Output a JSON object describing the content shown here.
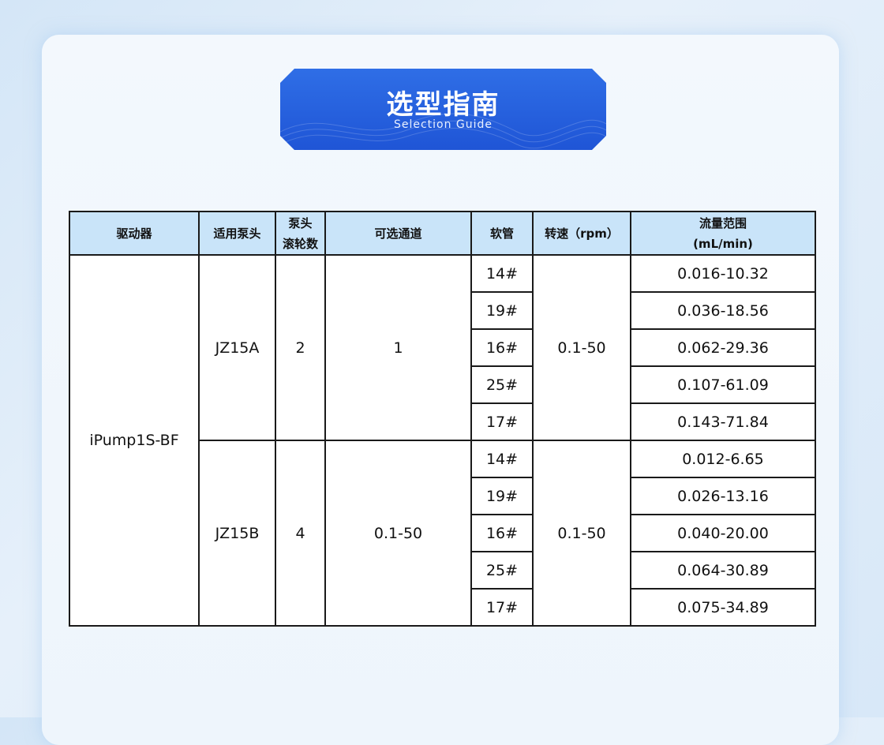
{
  "banner": {
    "title": "选型指南",
    "subtitle": "Selection Guide"
  },
  "table": {
    "headers": [
      "驱动器",
      "适用泵头",
      "泵头\n滚轮数",
      "可选通道",
      "软管",
      "转速（rpm）",
      "流量范围\n(mL/min)"
    ],
    "driver": "iPump1S-BF",
    "groups": [
      {
        "pump_head": "JZ15A",
        "rollers": "2",
        "channels": "1",
        "speed": "0.1-50",
        "rows": [
          {
            "tube": "14#",
            "flow": "0.016-10.32"
          },
          {
            "tube": "19#",
            "flow": "0.036-18.56"
          },
          {
            "tube": "16#",
            "flow": "0.062-29.36"
          },
          {
            "tube": "25#",
            "flow": "0.107-61.09"
          },
          {
            "tube": "17#",
            "flow": "0.143-71.84"
          }
        ]
      },
      {
        "pump_head": "JZ15B",
        "rollers": "4",
        "channels": "0.1-50",
        "speed": "0.1-50",
        "rows": [
          {
            "tube": "14#",
            "flow": "0.012-6.65"
          },
          {
            "tube": "19#",
            "flow": "0.026-13.16"
          },
          {
            "tube": "16#",
            "flow": "0.040-20.00"
          },
          {
            "tube": "25#",
            "flow": "0.064-30.89"
          },
          {
            "tube": "17#",
            "flow": "0.075-34.89"
          }
        ]
      }
    ]
  }
}
